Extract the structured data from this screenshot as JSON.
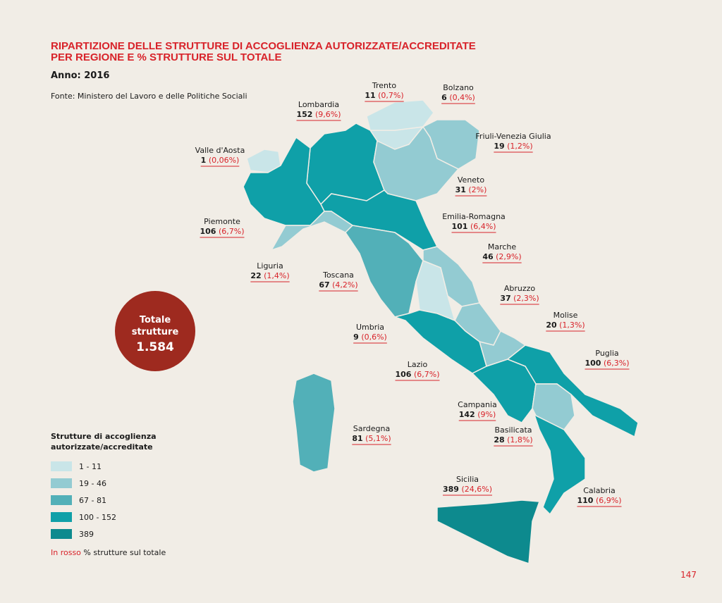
{
  "title": [
    "RIPARTIZIONE DELLE STRUTTURE DI ACCOGLIENZA AUTORIZZATE/ACCREDITATE",
    "PER REGIONE E % STRUTTURE SUL TOTALE"
  ],
  "year": "Anno: 2016",
  "source": "Fonte: Ministero del Lavoro e delle Politiche Sociali",
  "total": {
    "label": [
      "Totale",
      "strutture"
    ],
    "value": "1.584"
  },
  "regions": [
    {
      "name": "Trento",
      "count": 11,
      "pct": "(0,7%)",
      "color": "#c9e5e8"
    },
    {
      "name": "Bolzano",
      "count": 6,
      "pct": "(0,4%)",
      "color": "#c9e5e8"
    },
    {
      "name": "Lombardia",
      "count": 152,
      "pct": "(9,6%)",
      "color": "#0fa0a8"
    },
    {
      "name": "Friuli-Venezia Giulia",
      "count": 19,
      "pct": "(1,2%)",
      "color": "#93cbd2"
    },
    {
      "name": "Valle d'Aosta",
      "count": 1,
      "pct": "(0,06%)",
      "color": "#c9e5e8"
    },
    {
      "name": "Veneto",
      "count": 31,
      "pct": "(2%)",
      "color": "#93cbd2"
    },
    {
      "name": "Emilia-Romagna",
      "count": 101,
      "pct": "(6,4%)",
      "color": "#0fa0a8"
    },
    {
      "name": "Piemonte",
      "count": 106,
      "pct": "(6,7%)",
      "color": "#0fa0a8"
    },
    {
      "name": "Marche",
      "count": 46,
      "pct": "(2,9%)",
      "color": "#93cbd2"
    },
    {
      "name": "Liguria",
      "count": 22,
      "pct": "(1,4%)",
      "color": "#93cbd2"
    },
    {
      "name": "Toscana",
      "count": 67,
      "pct": "(4,2%)",
      "color": "#52b0b8"
    },
    {
      "name": "Abruzzo",
      "count": 37,
      "pct": "(2,3%)",
      "color": "#93cbd2"
    },
    {
      "name": "Molise",
      "count": 20,
      "pct": "(1,3%)",
      "color": "#93cbd2"
    },
    {
      "name": "Umbria",
      "count": 9,
      "pct": "(0,6%)",
      "color": "#c9e5e8"
    },
    {
      "name": "Puglia",
      "count": 100,
      "pct": "(6,3%)",
      "color": "#0fa0a8"
    },
    {
      "name": "Lazio",
      "count": 106,
      "pct": "(6,7%)",
      "color": "#0fa0a8"
    },
    {
      "name": "Campania",
      "count": 142,
      "pct": "(9%)",
      "color": "#0fa0a8"
    },
    {
      "name": "Sardegna",
      "count": 81,
      "pct": "(5,1%)",
      "color": "#52b0b8"
    },
    {
      "name": "Basilicata",
      "count": 28,
      "pct": "(1,8%)",
      "color": "#93cbd2"
    },
    {
      "name": "Sicilia",
      "count": 389,
      "pct": "(24,6%)",
      "color": "#0d8a8e"
    },
    {
      "name": "Calabria",
      "count": 110,
      "pct": "(6,9%)",
      "color": "#0fa0a8"
    }
  ],
  "legend": {
    "title": [
      "Strutture di accoglienza",
      "autorizzate/accreditate"
    ],
    "items": [
      {
        "label": "1 - 11",
        "color": "#c9e5e8"
      },
      {
        "label": "19 - 46",
        "color": "#93cbd2"
      },
      {
        "label": "67 - 81",
        "color": "#52b0b8"
      },
      {
        "label": "100 - 152",
        "color": "#0fa0a8"
      },
      {
        "label": "389",
        "color": "#0d8a8e"
      }
    ]
  },
  "note": {
    "red": "In rosso",
    "rest": "% strutture sul totale"
  },
  "page_number": "147"
}
